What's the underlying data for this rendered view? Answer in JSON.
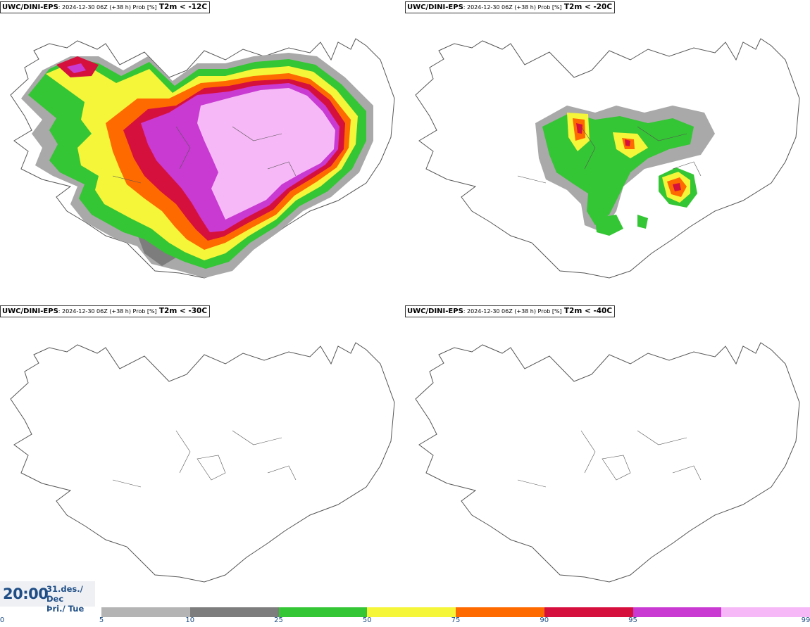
{
  "panels": [
    {
      "model": "UWC/DINI-EPS",
      "meta": ": 2024-12-30 06Z (+38 h) Prob [%]",
      "threshold": "T2m < -12C"
    },
    {
      "model": "UWC/DINI-EPS",
      "meta": ": 2024-12-30 06Z (+38 h) Prob [%]",
      "threshold": "T2m < -20C"
    },
    {
      "model": "UWC/DINI-EPS",
      "meta": ": 2024-12-30 06Z (+38 h) Prob [%]",
      "threshold": "T2m < -30C"
    },
    {
      "model": "UWC/DINI-EPS",
      "meta": ": 2024-12-30 06Z (+38 h) Prob [%]",
      "threshold": "T2m < -40C"
    }
  ],
  "valid_time": {
    "time": "20:00",
    "date_line": "31.des./ Dec",
    "day_line": "Þri./ Tue"
  },
  "colorbar": {
    "ticks": [
      "0",
      "5",
      "10",
      "25",
      "50",
      "75",
      "90",
      "95",
      "99"
    ],
    "colors": [
      "#b4b4b4",
      "#7d7d7d",
      "#34c634",
      "#f5f53a",
      "#ff6a00",
      "#d6103d",
      "#c93ad3",
      "#f6b8f6"
    ]
  },
  "map_colors": {
    "outline": "#555555",
    "gray_light": "#a9a9a9",
    "gray_dark": "#7d7d7d",
    "green": "#34c634",
    "yellow": "#f5f53a",
    "orange": "#ff6a00",
    "red": "#d6103d",
    "purple": "#c93ad3",
    "pink": "#f6b8f6"
  }
}
